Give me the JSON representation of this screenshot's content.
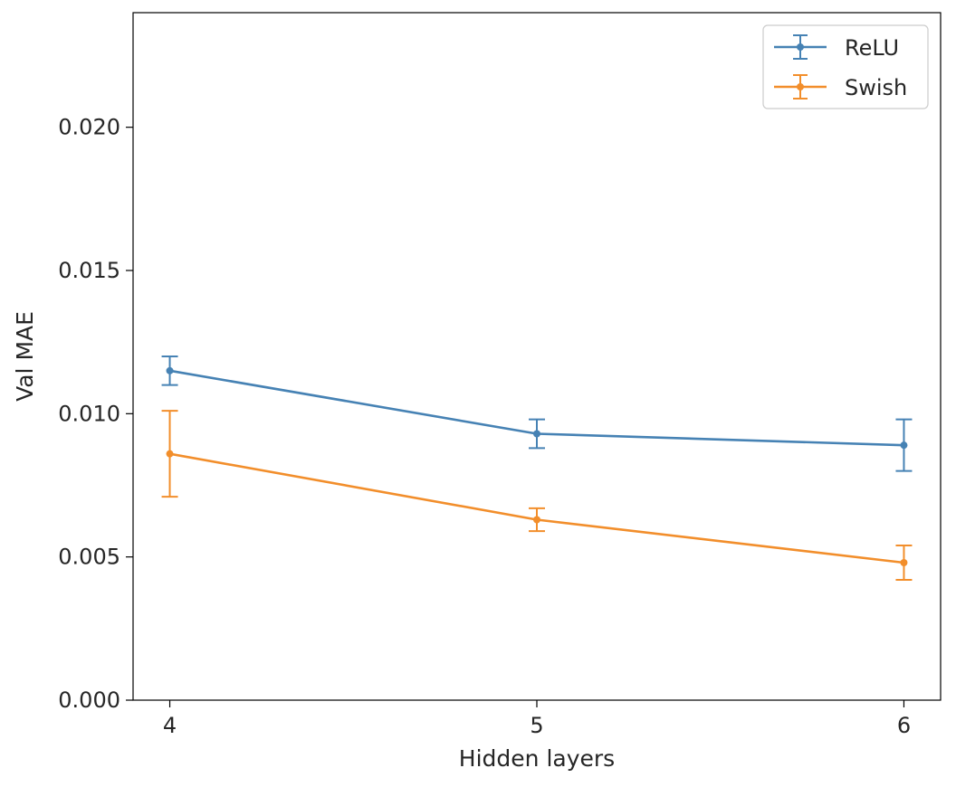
{
  "chart_data": {
    "type": "line",
    "title": "",
    "xlabel": "Hidden layers",
    "ylabel": "Val MAE",
    "x": [
      4,
      5,
      6
    ],
    "xticks": [
      "4",
      "5",
      "6"
    ],
    "xlim": [
      3.9,
      6.1
    ],
    "ylim": [
      0.0,
      0.024
    ],
    "yticks": [
      "0.000",
      "0.005",
      "0.010",
      "0.015",
      "0.020"
    ],
    "ytick_values": [
      0.0,
      0.005,
      0.01,
      0.015,
      0.02
    ],
    "grid": false,
    "legend_position": "top-right",
    "series": [
      {
        "name": "ReLU",
        "color": "#4682b4",
        "values": [
          0.0115,
          0.0093,
          0.0089
        ],
        "errors": [
          0.0005,
          0.0005,
          0.0009
        ]
      },
      {
        "name": "Swish",
        "color": "#f28e2b",
        "values": [
          0.0086,
          0.0063,
          0.0048
        ],
        "errors": [
          0.0015,
          0.0004,
          0.0006
        ]
      }
    ]
  }
}
